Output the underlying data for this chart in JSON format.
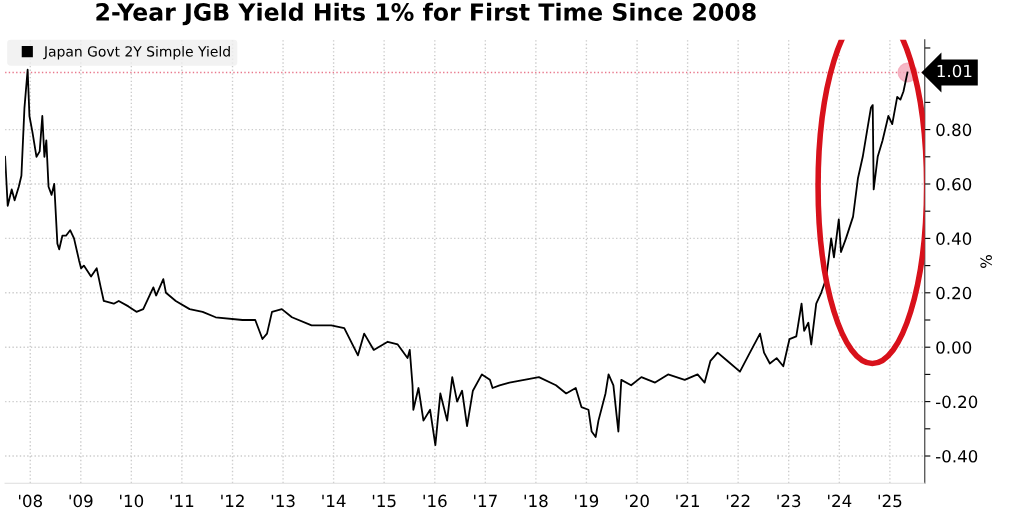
{
  "chart_data": {
    "type": "line",
    "title": "2-Year JGB Yield Hits 1% for First Time Since 2008",
    "ylabel": "%",
    "x": [
      "2008-01-01",
      "2008-01-20",
      "2008-02-18",
      "2008-03-10",
      "2008-04-09",
      "2008-04-28",
      "2008-05-20",
      "2008-06-12",
      "2008-06-25",
      "2008-07-17",
      "2008-08-15",
      "2008-09-07",
      "2008-09-26",
      "2008-10-11",
      "2008-10-25",
      "2008-11-10",
      "2008-12-02",
      "2008-12-21",
      "2009-01-13",
      "2009-01-26",
      "2009-02-18",
      "2009-03-16",
      "2009-04-15",
      "2009-05-13",
      "2009-06-18",
      "2009-07-03",
      "2009-07-23",
      "2009-09-13",
      "2009-10-24",
      "2009-11-22",
      "2009-12-14",
      "2010-02-24",
      "2010-04-01",
      "2010-06-10",
      "2010-08-07",
      "2010-09-25",
      "2010-12-07",
      "2010-12-27",
      "2011-02-17",
      "2011-03-08",
      "2011-05-18",
      "2011-08-26",
      "2011-11-28",
      "2012-03-01",
      "2012-09-11",
      "2012-12-12",
      "2013-02-02",
      "2013-03-07",
      "2013-04-12",
      "2013-06-22",
      "2013-09-03",
      "2014-01-23",
      "2014-06-14",
      "2014-09-16",
      "2014-12-24",
      "2015-02-07",
      "2015-04-17",
      "2015-07-27",
      "2015-10-07",
      "2015-12-17",
      "2016-01-02",
      "2016-01-22",
      "2016-01-28",
      "2016-03-05",
      "2016-04-10",
      "2016-05-28",
      "2016-07-05",
      "2016-08-10",
      "2016-09-28",
      "2016-11-04",
      "2016-12-09",
      "2017-01-14",
      "2017-02-19",
      "2017-04-02",
      "2017-06-06",
      "2017-08-03",
      "2017-08-22",
      "2017-10-12",
      "2017-12-22",
      "2018-07-23",
      "2018-11-23",
      "2019-02-05",
      "2019-04-15",
      "2019-05-26",
      "2019-07-16",
      "2019-08-08",
      "2019-09-06",
      "2019-09-26",
      "2019-11-16",
      "2019-12-08",
      "2020-01-12",
      "2020-02-04",
      "2020-02-17",
      "2020-03-09",
      "2020-05-19",
      "2020-08-01",
      "2020-11-08",
      "2021-02-10",
      "2021-06-10",
      "2021-09-11",
      "2021-11-01",
      "2021-12-13",
      "2022-02-03",
      "2022-04-13",
      "2022-07-14",
      "2022-09-24",
      "2022-12-06",
      "2023-01-04",
      "2023-02-15",
      "2023-04-05",
      "2023-05-23",
      "2023-07-07",
      "2023-08-25",
      "2023-10-02",
      "2023-10-21",
      "2023-11-20",
      "2023-12-11",
      "2024-01-16",
      "2024-02-21",
      "2024-03-26",
      "2024-04-11",
      "2024-05-03",
      "2024-05-23",
      "2024-06-27",
      "2024-07-13",
      "2024-08-18",
      "2024-10-08",
      "2024-11-12",
      "2024-12-17",
      "2025-01-22",
      "2025-02-14",
      "2025-02-27",
      "2025-03-06",
      "2025-04-04",
      "2025-05-09",
      "2025-06-20",
      "2025-07-18",
      "2025-08-23",
      "2025-09-15",
      "2025-10-07",
      "2025-11-05"
    ],
    "series": [
      {
        "name": "Japan Govt 2Y Simple Yield",
        "color": "#000000",
        "values": [
          0.7,
          0.52,
          0.58,
          0.54,
          0.59,
          0.63,
          0.88,
          1.02,
          0.85,
          0.79,
          0.7,
          0.72,
          0.85,
          0.7,
          0.76,
          0.59,
          0.56,
          0.6,
          0.38,
          0.36,
          0.41,
          0.41,
          0.43,
          0.4,
          0.32,
          0.29,
          0.3,
          0.26,
          0.29,
          0.22,
          0.17,
          0.16,
          0.17,
          0.15,
          0.13,
          0.14,
          0.22,
          0.19,
          0.25,
          0.2,
          0.17,
          0.14,
          0.13,
          0.11,
          0.1,
          0.1,
          0.03,
          0.05,
          0.13,
          0.14,
          0.11,
          0.08,
          0.08,
          0.07,
          -0.03,
          0.05,
          -0.01,
          0.02,
          0.01,
          -0.04,
          -0.01,
          -0.14,
          -0.23,
          -0.15,
          -0.27,
          -0.23,
          -0.36,
          -0.17,
          -0.27,
          -0.11,
          -0.2,
          -0.16,
          -0.29,
          -0.16,
          -0.1,
          -0.12,
          -0.15,
          -0.14,
          -0.13,
          -0.11,
          -0.14,
          -0.17,
          -0.15,
          -0.22,
          -0.23,
          -0.31,
          -0.33,
          -0.27,
          -0.17,
          -0.1,
          -0.14,
          -0.25,
          -0.31,
          -0.12,
          -0.14,
          -0.11,
          -0.13,
          -0.1,
          -0.12,
          -0.1,
          -0.13,
          -0.05,
          -0.02,
          -0.05,
          -0.09,
          -0.02,
          0.05,
          -0.02,
          -0.06,
          -0.04,
          -0.07,
          0.03,
          0.04,
          0.16,
          0.06,
          0.09,
          0.01,
          0.16,
          0.2,
          0.25,
          0.31,
          0.4,
          0.33,
          0.47,
          0.35,
          0.4,
          0.48,
          0.62,
          0.7,
          0.81,
          0.88,
          0.89,
          0.58,
          0.7,
          0.76,
          0.85,
          0.82,
          0.92,
          0.91,
          0.94,
          1.01
        ]
      }
    ],
    "xlim": [
      "2008-01-01",
      "2026-03-10"
    ],
    "xticks": [
      {
        "value": "2008-07-01",
        "label": "'08"
      },
      {
        "value": "2009-07-01",
        "label": "'09"
      },
      {
        "value": "2010-07-01",
        "label": "'10"
      },
      {
        "value": "2011-07-01",
        "label": "'11"
      },
      {
        "value": "2012-07-01",
        "label": "'12"
      },
      {
        "value": "2013-07-01",
        "label": "'13"
      },
      {
        "value": "2014-07-01",
        "label": "'14"
      },
      {
        "value": "2015-07-01",
        "label": "'15"
      },
      {
        "value": "2016-07-01",
        "label": "'16"
      },
      {
        "value": "2017-07-01",
        "label": "'17"
      },
      {
        "value": "2018-07-01",
        "label": "'18"
      },
      {
        "value": "2019-07-01",
        "label": "'19"
      },
      {
        "value": "2020-07-01",
        "label": "'20"
      },
      {
        "value": "2021-07-01",
        "label": "'21"
      },
      {
        "value": "2022-07-01",
        "label": "'22"
      },
      {
        "value": "2023-07-01",
        "label": "'23"
      },
      {
        "value": "2024-07-01",
        "label": "'24"
      },
      {
        "value": "2025-07-01",
        "label": "'25"
      }
    ],
    "ylim": [
      -0.5,
      1.13
    ],
    "yticks": [
      {
        "value": -0.4,
        "label": "-0.40"
      },
      {
        "value": -0.3,
        "label": null
      },
      {
        "value": -0.2,
        "label": "-0.20"
      },
      {
        "value": -0.1,
        "label": null
      },
      {
        "value": 0.0,
        "label": "0.00"
      },
      {
        "value": 0.1,
        "label": null
      },
      {
        "value": 0.2,
        "label": "0.20"
      },
      {
        "value": 0.3,
        "label": null
      },
      {
        "value": 0.4,
        "label": "0.40"
      },
      {
        "value": 0.5,
        "label": null
      },
      {
        "value": 0.6,
        "label": "0.60"
      },
      {
        "value": 0.7,
        "label": null
      },
      {
        "value": 0.8,
        "label": "0.80"
      },
      {
        "value": 0.9,
        "label": null
      },
      {
        "value": 1.0,
        "label": null
      },
      {
        "value": 1.1,
        "label": null
      }
    ],
    "ref_lines": [
      {
        "axis": "y",
        "value": 1.01,
        "label": "1.01",
        "color": "#e8788c",
        "line_style": "dotted"
      }
    ],
    "grid": true,
    "legend": "top left",
    "marker": "none",
    "line_style": "solid"
  }
}
